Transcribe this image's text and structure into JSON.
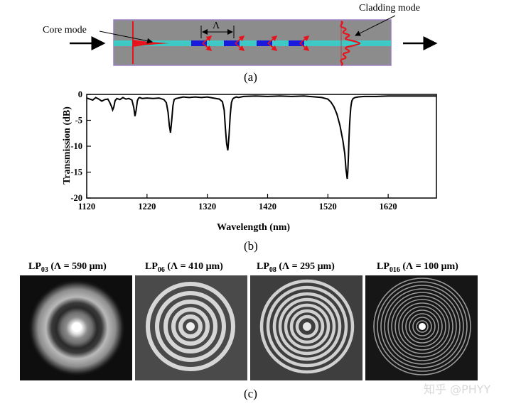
{
  "panel_a": {
    "label": "(a)",
    "core_mode_label": "Core mode",
    "cladding_mode_label": "Cladding mode",
    "period_symbol": "Λ"
  },
  "panel_b": {
    "label": "(b)"
  },
  "panel_c": {
    "label": "(c)",
    "images": [
      {
        "mode": "LP",
        "sub": "03",
        "rest": " (Λ = 590 μm)"
      },
      {
        "mode": "LP",
        "sub": "06",
        "rest": " (Λ = 410 μm)"
      },
      {
        "mode": "LP",
        "sub": "08",
        "rest": " (Λ = 295 μm)"
      },
      {
        "mode": "LP",
        "sub": "016",
        "rest": " (Λ = 100 μm)"
      }
    ]
  },
  "watermark": "知乎 @PHYY",
  "colors": {
    "cladding": "#8c8c8c",
    "core": "#3fc9c4",
    "mode": "#e8141c",
    "grating": "#1a1adc",
    "border": "#9b7fc0"
  },
  "chart_data": {
    "type": "line",
    "xlabel": "Wavelength (nm)",
    "ylabel": "Transmission (dB)",
    "xlim": [
      1120,
      1700
    ],
    "ylim": [
      -20,
      0
    ],
    "xticks": [
      "1120",
      "1220",
      "1320",
      "1420",
      "1520",
      "1620"
    ],
    "yticks": [
      "0",
      "-5",
      "-10",
      "-15",
      "-20"
    ],
    "grid": false,
    "series": [
      {
        "x": [
          1120,
          1125,
          1130,
          1135,
          1140,
          1145,
          1150,
          1155,
          1158,
          1161,
          1163,
          1165,
          1167,
          1170,
          1175,
          1180,
          1185,
          1190,
          1195,
          1198,
          1200,
          1202,
          1204,
          1206,
          1208,
          1212,
          1220,
          1230,
          1240,
          1248,
          1252,
          1255,
          1257,
          1259,
          1261,
          1263,
          1265,
          1268,
          1272,
          1280,
          1290,
          1300,
          1310,
          1320,
          1330,
          1340,
          1345,
          1348,
          1350,
          1352,
          1354,
          1356,
          1358,
          1360,
          1362,
          1364,
          1368,
          1372,
          1380,
          1400,
          1420,
          1440,
          1460,
          1480,
          1500,
          1510,
          1520,
          1525,
          1530,
          1535,
          1540,
          1545,
          1548,
          1550,
          1552,
          1553,
          1554,
          1555,
          1556,
          1557,
          1558,
          1559,
          1560,
          1562,
          1565,
          1570,
          1580,
          1600,
          1620,
          1640,
          1660,
          1680,
          1700
        ],
        "y": [
          -0.7,
          -0.9,
          -1.1,
          -0.6,
          -0.9,
          -1.3,
          -1.0,
          -0.9,
          -1.5,
          -2.3,
          -3.0,
          -2.4,
          -1.2,
          -0.8,
          -1.0,
          -0.6,
          -0.9,
          -0.8,
          -1.1,
          -2.5,
          -4.2,
          -3.0,
          -1.2,
          -0.7,
          -0.6,
          -0.8,
          -0.7,
          -0.8,
          -0.7,
          -1.0,
          -1.6,
          -3.5,
          -6.0,
          -7.4,
          -5.0,
          -2.2,
          -1.0,
          -0.8,
          -0.7,
          -0.5,
          -0.6,
          -0.5,
          -0.6,
          -0.5,
          -0.7,
          -0.9,
          -1.4,
          -3.0,
          -6.5,
          -9.5,
          -10.8,
          -8.0,
          -4.0,
          -1.6,
          -0.9,
          -0.7,
          -0.5,
          -0.6,
          -0.4,
          -0.3,
          -0.4,
          -0.3,
          -0.4,
          -0.3,
          -0.5,
          -0.6,
          -0.9,
          -1.5,
          -2.4,
          -3.8,
          -6.0,
          -9.0,
          -11.5,
          -14.5,
          -16.3,
          -15.0,
          -12.0,
          -8.5,
          -6.0,
          -4.0,
          -2.6,
          -1.7,
          -1.2,
          -0.8,
          -0.6,
          -0.5,
          -0.4,
          -0.4,
          -0.3,
          -0.3,
          -0.3,
          -0.3,
          -0.3
        ]
      }
    ]
  }
}
